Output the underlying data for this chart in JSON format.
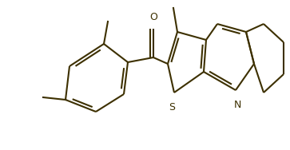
{
  "line_color": "#3d3000",
  "bg_color": "#ffffff",
  "line_width": 1.5,
  "figsize": [
    3.63,
    1.88
  ],
  "dpi": 100,
  "xlim": [
    0,
    363
  ],
  "ylim": [
    0,
    188
  ]
}
